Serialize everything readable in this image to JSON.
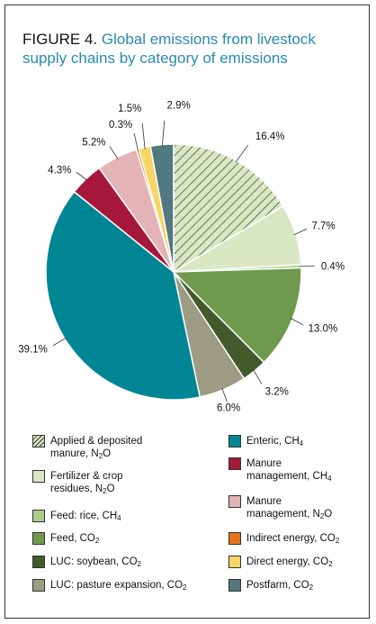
{
  "title": {
    "label": "FIGURE 4.",
    "text_line1": "Global emissions from livestock",
    "text_line2": "supply chains by category of emissions"
  },
  "chart_data": {
    "type": "pie",
    "title": "Global emissions from livestock supply chains by category of emissions",
    "slices": [
      {
        "name": "Applied & deposited manure, N2O",
        "value": 16.4,
        "label": "16.4%",
        "color": "#d9e8c3",
        "hatched": true
      },
      {
        "name": "Fertilizer & crop residues, N2O",
        "value": 7.7,
        "label": "7.7%",
        "color": "#d9e8c3"
      },
      {
        "name": "Feed: rice, CH4",
        "value": 0.4,
        "label": "0.4%",
        "color": "#a8cf87"
      },
      {
        "name": "Feed, CO2",
        "value": 13.0,
        "label": "13.0%",
        "color": "#6f9a4d"
      },
      {
        "name": "LUC: soybean, CO2",
        "value": 3.2,
        "label": "3.2%",
        "color": "#435a2a"
      },
      {
        "name": "LUC: pasture expansion, CO2",
        "value": 6.0,
        "label": "6.0%",
        "color": "#9c9c84"
      },
      {
        "name": "Enteric, CH4",
        "value": 39.1,
        "label": "39.1%",
        "color": "#008595"
      },
      {
        "name": "Manure management, CH4",
        "value": 4.3,
        "label": "4.3%",
        "color": "#a5183b"
      },
      {
        "name": "Manure management, N2O",
        "value": 5.2,
        "label": "5.2%",
        "color": "#e3b3b6"
      },
      {
        "name": "Indirect energy, CO2",
        "value": 0.3,
        "label": "0.3%",
        "color": "#e8711c"
      },
      {
        "name": "Direct energy, CO2",
        "value": 1.5,
        "label": "1.5%",
        "color": "#f8d565"
      },
      {
        "name": "Postfarm, CO2",
        "value": 2.9,
        "label": "2.9%",
        "color": "#527880"
      }
    ],
    "legend_placement": "bottom"
  },
  "legend": [
    {
      "text": "Applied & deposited\nmanure, N",
      "sub": "2",
      "tail": "O",
      "color": "#d9e8c3",
      "hatched": true
    },
    {
      "text": "Enteric, CH",
      "sub": "4",
      "tail": "",
      "color": "#008595"
    },
    {
      "text": "Fertilizer & crop\nresidues, N",
      "sub": "2",
      "tail": "O",
      "color": "#d9e8c3"
    },
    {
      "text": "Manure\nmanagement, CH",
      "sub": "4",
      "tail": "",
      "color": "#a5183b"
    },
    {
      "text": "Feed: rice, CH",
      "sub": "4",
      "tail": "",
      "color": "#a8cf87"
    },
    {
      "text": "Manure\nmanagement, N",
      "sub": "2",
      "tail": "O",
      "color": "#e3b3b6"
    },
    {
      "text": "Feed, CO",
      "sub": "2",
      "tail": "",
      "color": "#6f9a4d"
    },
    {
      "text": "Indirect energy, CO",
      "sub": "2",
      "tail": "",
      "color": "#e8711c"
    },
    {
      "text": "LUC: soybean, CO",
      "sub": "2",
      "tail": "",
      "color": "#435a2a"
    },
    {
      "text": "Direct energy, CO",
      "sub": "2",
      "tail": "",
      "color": "#f8d565"
    },
    {
      "text": "LUC: pasture expansion, CO",
      "sub": "2",
      "tail": "",
      "color": "#9c9c84"
    },
    {
      "text": "Postfarm, CO",
      "sub": "2",
      "tail": "",
      "color": "#527880"
    }
  ]
}
